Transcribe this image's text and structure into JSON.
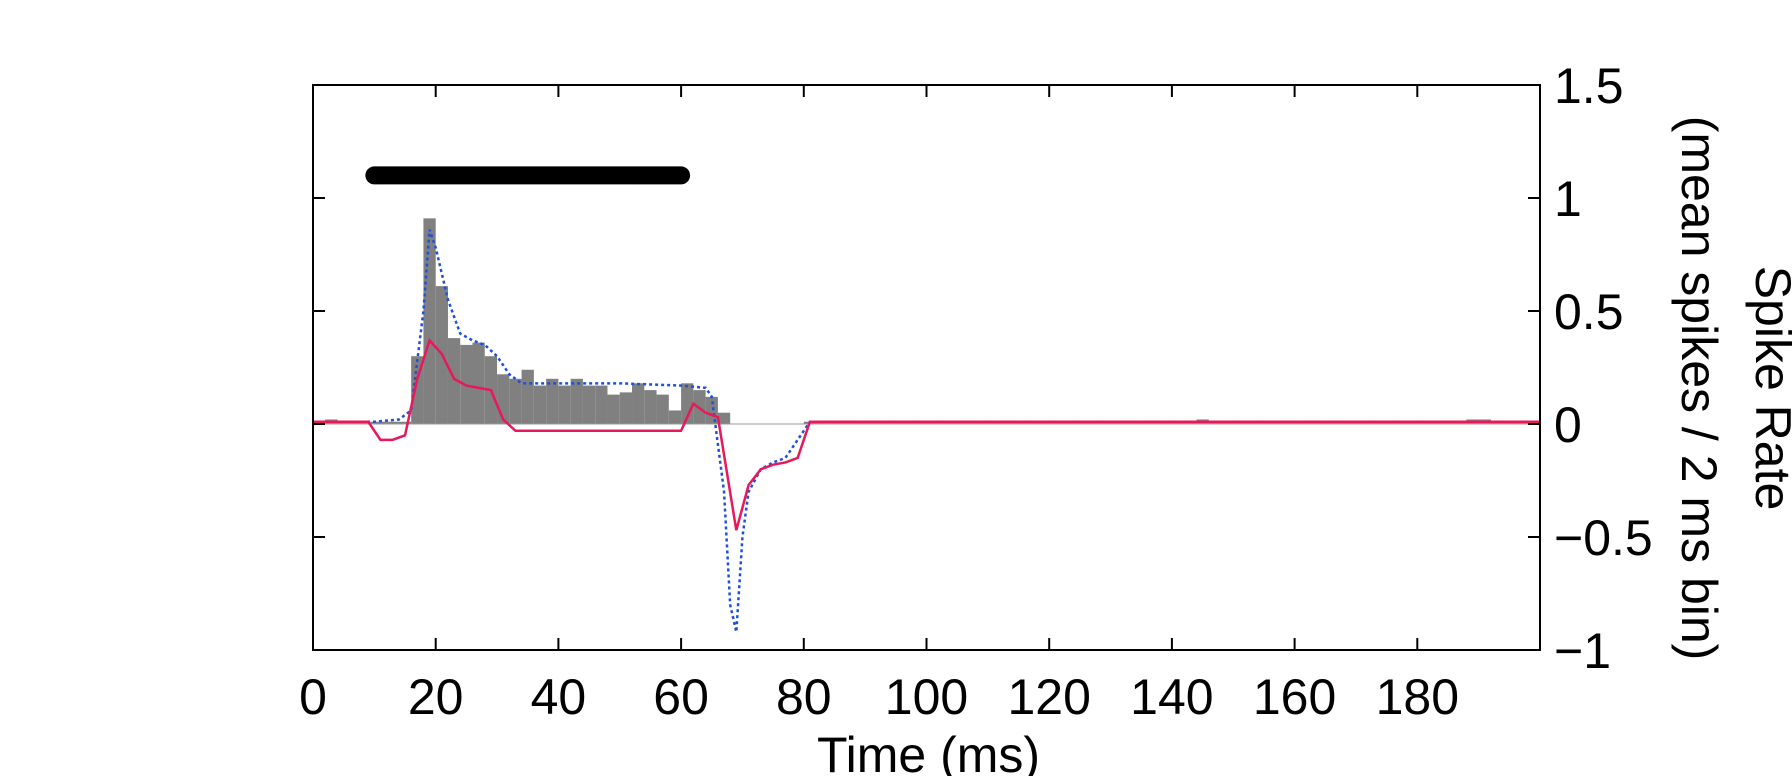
{
  "chart_data": {
    "type": "histogram",
    "xlabel": "Time (ms)",
    "ylabel": [
      "Spike Rate",
      "(mean spikes / 2 ms bin)"
    ],
    "xlim": [
      0,
      200
    ],
    "ylim": [
      -1,
      1.5
    ],
    "xticks": [
      0,
      20,
      40,
      60,
      80,
      100,
      120,
      140,
      160,
      180
    ],
    "yticks": [
      {
        "value": -1,
        "label": "−1"
      },
      {
        "value": -0.5,
        "label": "−0.5"
      },
      0,
      0.5,
      1,
      1.5
    ],
    "y_axis_side": "right",
    "color": "#808080",
    "bins": [
      0,
      2,
      4,
      6,
      8,
      10,
      12,
      14,
      16,
      18,
      20,
      22,
      24,
      26,
      28,
      30,
      32,
      34,
      36,
      38,
      40,
      42,
      44,
      46,
      48,
      50,
      52,
      54,
      56,
      58,
      60,
      62,
      64,
      66,
      68,
      70,
      72,
      74,
      76,
      78,
      80,
      82,
      84,
      86,
      88,
      90,
      92,
      94,
      96,
      98,
      100,
      102,
      104,
      106,
      108,
      110,
      112,
      114,
      116,
      118,
      120,
      122,
      124,
      126,
      128,
      130,
      132,
      134,
      136,
      138,
      140,
      142,
      144,
      146,
      148,
      150,
      152,
      154,
      156,
      158,
      160,
      162,
      164,
      166,
      168,
      170,
      172,
      174,
      176,
      178,
      180,
      182,
      184,
      186,
      188,
      190,
      192,
      194,
      196,
      198,
      200
    ],
    "counts": [
      0.01,
      0.02,
      0.01,
      0.01,
      0.01,
      0.01,
      0.01,
      0.01,
      0.3,
      0.91,
      0.61,
      0.38,
      0.35,
      0.36,
      0.3,
      0.22,
      0.2,
      0.24,
      0.17,
      0.2,
      0.17,
      0.2,
      0.17,
      0.17,
      0.13,
      0.14,
      0.18,
      0.15,
      0.13,
      0.06,
      0.18,
      0.15,
      0.12,
      0.05,
      0,
      0,
      0,
      0,
      0,
      0,
      0.01,
      0.01,
      0.01,
      0.01,
      0.01,
      0.01,
      0.01,
      0.01,
      0.01,
      0.01,
      0.01,
      0.01,
      0.01,
      0.01,
      0.01,
      0.01,
      0.01,
      0.01,
      0.01,
      0.01,
      0.01,
      0.01,
      0.01,
      0.01,
      0.01,
      0.01,
      0.01,
      0.01,
      0.01,
      0.01,
      0.01,
      0.01,
      0.02,
      0.01,
      0.01,
      0.01,
      0.01,
      0.01,
      0.01,
      0.01,
      0.01,
      0.01,
      0.01,
      0.01,
      0.01,
      0.01,
      0.01,
      0.01,
      0.01,
      0.01,
      0.01,
      0.01,
      0.01,
      0.01,
      0.02,
      0.02,
      0.01,
      0.01,
      0.01,
      0.01
    ],
    "lines": [
      {
        "color": "#1f4fe0",
        "style": "dotted",
        "x": [
          0,
          10,
          14,
          16,
          18,
          19,
          20,
          22,
          24,
          26,
          28,
          30,
          32,
          34,
          40,
          50,
          60,
          64,
          65,
          67,
          68,
          69,
          70,
          71,
          73,
          75,
          77,
          79,
          81,
          200
        ],
        "values": [
          0.01,
          0.01,
          0.02,
          0.06,
          0.5,
          0.86,
          0.78,
          0.55,
          0.4,
          0.37,
          0.35,
          0.3,
          0.22,
          0.18,
          0.18,
          0.18,
          0.17,
          0.16,
          0.12,
          -0.3,
          -0.8,
          -0.92,
          -0.5,
          -0.3,
          -0.2,
          -0.17,
          -0.15,
          -0.07,
          0.01,
          0.01
        ]
      },
      {
        "color": "#e8185a",
        "style": "solid",
        "x": [
          0,
          9,
          11,
          13,
          15,
          17,
          19,
          21,
          23,
          25,
          27,
          29,
          31,
          33,
          60,
          62,
          64,
          66,
          69,
          71,
          73,
          75,
          77,
          79,
          81,
          200
        ],
        "values": [
          0.01,
          0.01,
          -0.07,
          -0.07,
          -0.05,
          0.2,
          0.37,
          0.31,
          0.2,
          0.17,
          0.16,
          0.15,
          0.02,
          -0.03,
          -0.03,
          0.09,
          0.05,
          0.03,
          -0.47,
          -0.27,
          -0.2,
          -0.18,
          -0.17,
          -0.15,
          0.01,
          0.01
        ]
      }
    ],
    "stimulus": {
      "x": [
        10,
        60
      ],
      "y": 1.1,
      "color": "#000000"
    }
  }
}
